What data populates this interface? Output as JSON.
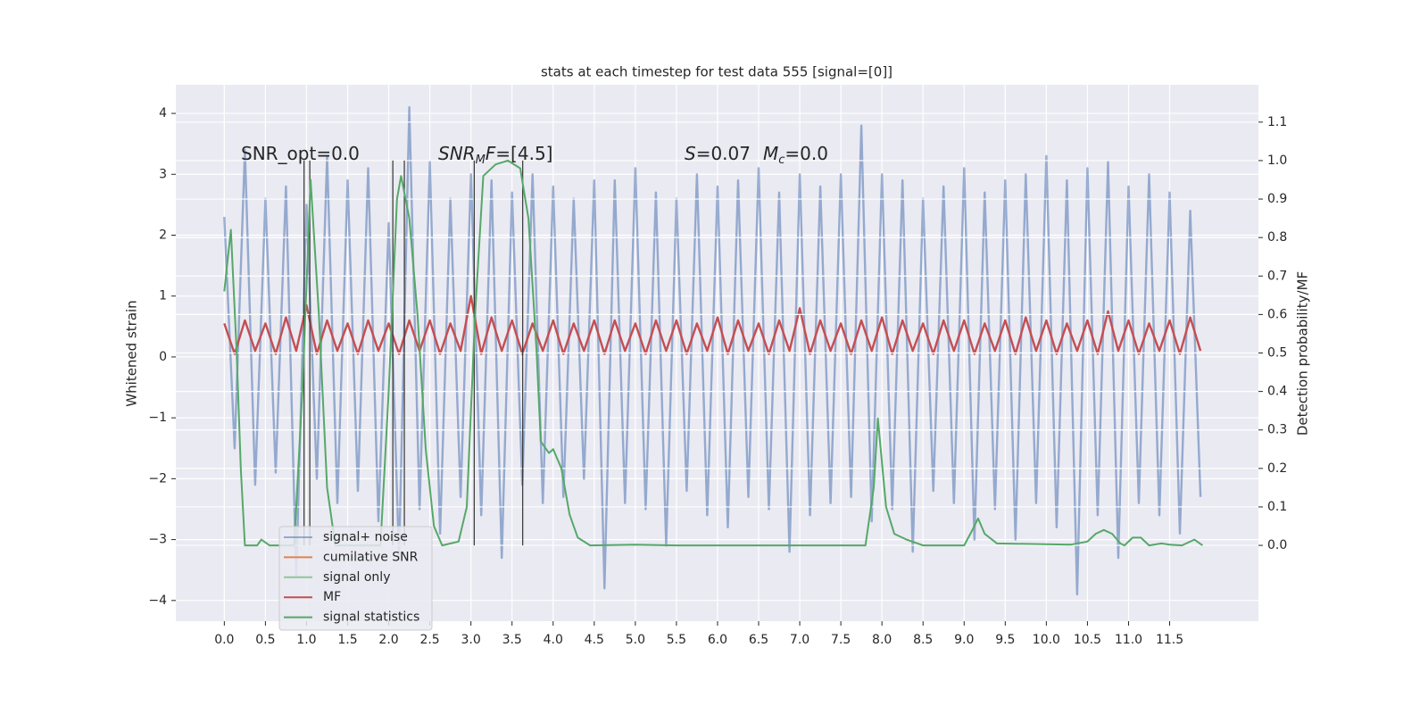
{
  "chart_data": {
    "type": "line",
    "title": "stats at each timestep for test data 555 [signal=[0]]",
    "y_label": "Whitened strain",
    "y2_label": "Detection probability/MF",
    "xlim": [
      -0.59,
      12.58
    ],
    "ylim": [
      -4.34,
      4.47
    ],
    "y2lim": [
      -0.197,
      1.197
    ],
    "grid": true,
    "background": "#eaeaf2",
    "xticks": [
      {
        "value": 0,
        "label": "0.0"
      },
      {
        "value": 0.5,
        "label": "0.5"
      },
      {
        "value": 1,
        "label": "1.0"
      },
      {
        "value": 1.5,
        "label": "1.5"
      },
      {
        "value": 2,
        "label": "2.0"
      },
      {
        "value": 2.5,
        "label": "2.5"
      },
      {
        "value": 3,
        "label": "3.0"
      },
      {
        "value": 3.5,
        "label": "3.5"
      },
      {
        "value": 4,
        "label": "4.0"
      },
      {
        "value": 4.5,
        "label": "4.5"
      },
      {
        "value": 5,
        "label": "5.0"
      },
      {
        "value": 5.5,
        "label": "5.5"
      },
      {
        "value": 6,
        "label": "6.0"
      },
      {
        "value": 6.5,
        "label": "6.5"
      },
      {
        "value": 7,
        "label": "7.0"
      },
      {
        "value": 7.5,
        "label": "7.5"
      },
      {
        "value": 8,
        "label": "8.0"
      },
      {
        "value": 8.5,
        "label": "8.5"
      },
      {
        "value": 9,
        "label": "9.0"
      },
      {
        "value": 9.5,
        "label": "9.5"
      },
      {
        "value": 10,
        "label": "10.0"
      },
      {
        "value": 10.5,
        "label": "10.5"
      },
      {
        "value": 11,
        "label": "11.0"
      },
      {
        "value": 11.5,
        "label": "11.5"
      }
    ],
    "yticks": [
      {
        "value": -4,
        "label": "−4"
      },
      {
        "value": -3,
        "label": "−3"
      },
      {
        "value": -2,
        "label": "−2"
      },
      {
        "value": -1,
        "label": "−1"
      },
      0,
      1,
      2,
      3,
      4
    ],
    "y2ticks": [
      {
        "value": 0,
        "label": "0.0"
      },
      {
        "value": 0.1,
        "label": "0.1"
      },
      {
        "value": 0.2,
        "label": "0.2"
      },
      {
        "value": 0.3,
        "label": "0.3"
      },
      {
        "value": 0.4,
        "label": "0.4"
      },
      {
        "value": 0.5,
        "label": "0.5"
      },
      {
        "value": 0.6,
        "label": "0.6"
      },
      {
        "value": 0.7,
        "label": "0.7"
      },
      {
        "value": 0.8,
        "label": "0.8"
      },
      {
        "value": 0.9,
        "label": "0.9"
      },
      {
        "value": 1,
        "label": "1.0"
      },
      {
        "value": 1.1,
        "label": "1.1"
      }
    ],
    "x": [
      0,
      0.125,
      0.25,
      0.375,
      0.5,
      0.625,
      0.75,
      0.875,
      1,
      1.125,
      1.25,
      1.375,
      1.5,
      1.625,
      1.75,
      1.875,
      2,
      2.125,
      2.25,
      2.375,
      2.5,
      2.625,
      2.75,
      2.875,
      3,
      3.125,
      3.25,
      3.375,
      3.5,
      3.625,
      3.75,
      3.875,
      4,
      4.125,
      4.25,
      4.375,
      4.5,
      4.625,
      4.75,
      4.875,
      5,
      5.125,
      5.25,
      5.375,
      5.5,
      5.625,
      5.75,
      5.875,
      6,
      6.125,
      6.25,
      6.375,
      6.5,
      6.625,
      6.75,
      6.875,
      7,
      7.125,
      7.25,
      7.375,
      7.5,
      7.625,
      7.75,
      7.875,
      8,
      8.125,
      8.25,
      8.375,
      8.5,
      8.625,
      8.75,
      8.875,
      9,
      9.125,
      9.25,
      9.375,
      9.5,
      9.625,
      9.75,
      9.875,
      10,
      10.125,
      10.25,
      10.375,
      10.5,
      10.625,
      10.75,
      10.875,
      11,
      11.125,
      11.25,
      11.375,
      11.5,
      11.625,
      11.75,
      11.875
    ],
    "series": [
      {
        "name": "signal+ noise",
        "color": "#4c72b0",
        "values": [
          2.3,
          -1.5,
          3.4,
          -2.1,
          2.6,
          -1.9,
          2.8,
          -3.6,
          2.5,
          -2.0,
          3.3,
          -2.4,
          2.9,
          -2.2,
          3.1,
          -2.7,
          2.2,
          -3.3,
          4.1,
          -2.5,
          3.2,
          -2.9,
          2.6,
          -2.3,
          3.0,
          -2.6,
          2.9,
          -3.3,
          2.7,
          -2.1,
          3.0,
          -2.4,
          2.8,
          -2.3,
          2.6,
          -2.0,
          2.9,
          -3.8,
          2.9,
          -2.4,
          3.1,
          -2.5,
          2.7,
          -3.1,
          2.6,
          -2.2,
          3.0,
          -2.6,
          2.8,
          -2.8,
          2.9,
          -2.3,
          3.1,
          -2.5,
          2.7,
          -3.2,
          3.0,
          -2.6,
          2.8,
          -2.4,
          3.0,
          -2.3,
          3.8,
          -2.7,
          3.0,
          -2.5,
          2.9,
          -3.2,
          2.6,
          -2.2,
          2.8,
          -2.4,
          3.1,
          -3.0,
          2.7,
          -2.5,
          2.9,
          -3.0,
          3.0,
          -2.4,
          3.3,
          -2.8,
          2.9,
          -3.9,
          3.1,
          -2.6,
          3.2,
          -3.3,
          2.8,
          -2.4,
          3.0,
          -2.6,
          2.7,
          -2.9,
          2.4,
          -2.3
        ]
      },
      {
        "name": "cumilative SNR",
        "color": "#dd8452"
      },
      {
        "name": "signal only",
        "color": "#8fc59c"
      },
      {
        "name": "MF",
        "color": "#c44e52",
        "values": [
          0.55,
          0.05,
          0.6,
          0.1,
          0.55,
          0.05,
          0.65,
          0.1,
          0.85,
          0.05,
          0.6,
          0.1,
          0.55,
          0.05,
          0.6,
          0.1,
          0.55,
          0.05,
          0.6,
          0.1,
          0.6,
          0.05,
          0.55,
          0.1,
          1.0,
          0.05,
          0.65,
          0.1,
          0.6,
          0.05,
          0.55,
          0.1,
          0.6,
          0.05,
          0.55,
          0.1,
          0.6,
          0.05,
          0.6,
          0.1,
          0.55,
          0.05,
          0.6,
          0.1,
          0.6,
          0.05,
          0.55,
          0.1,
          0.65,
          0.05,
          0.6,
          0.1,
          0.55,
          0.05,
          0.6,
          0.1,
          0.8,
          0.05,
          0.6,
          0.1,
          0.55,
          0.05,
          0.6,
          0.1,
          0.65,
          0.05,
          0.6,
          0.1,
          0.55,
          0.05,
          0.6,
          0.1,
          0.6,
          0.05,
          0.55,
          0.1,
          0.6,
          0.05,
          0.65,
          0.1,
          0.6,
          0.05,
          0.55,
          0.1,
          0.6,
          0.05,
          0.75,
          0.1,
          0.6,
          0.05,
          0.55,
          0.1,
          0.6,
          0.05,
          0.65,
          0.1
        ]
      },
      {
        "name": "signal statistics",
        "color": "#55a868",
        "axis": "y2",
        "x": [
          0,
          0.08,
          0.15,
          0.2,
          0.25,
          0.4,
          0.45,
          0.55,
          0.85,
          0.95,
          1.05,
          1.15,
          1.25,
          1.35,
          1.9,
          2.0,
          2.1,
          2.15,
          2.25,
          2.35,
          2.45,
          2.55,
          2.65,
          2.85,
          2.95,
          3.05,
          3.15,
          3.3,
          3.45,
          3.6,
          3.7,
          3.8,
          3.85,
          3.95,
          4.0,
          4.1,
          4.2,
          4.3,
          4.45,
          5.0,
          5.5,
          7.8,
          7.9,
          7.95,
          8.05,
          8.15,
          8.3,
          8.5,
          9.0,
          9.1,
          9.17,
          9.25,
          9.4,
          10.3,
          10.5,
          10.6,
          10.7,
          10.8,
          10.9,
          10.95,
          11.05,
          11.15,
          11.25,
          11.4,
          11.5,
          11.65,
          11.8,
          11.9
        ],
        "values": [
          0.66,
          0.82,
          0.5,
          0.2,
          0.0,
          0.0,
          0.015,
          0.0,
          0.0,
          0.4,
          0.95,
          0.6,
          0.15,
          0.0,
          0.0,
          0.4,
          0.9,
          0.96,
          0.85,
          0.6,
          0.25,
          0.05,
          0.0,
          0.01,
          0.1,
          0.6,
          0.96,
          0.99,
          1.0,
          0.98,
          0.85,
          0.5,
          0.27,
          0.24,
          0.25,
          0.2,
          0.08,
          0.02,
          0.0,
          0.002,
          0.0,
          0.0,
          0.15,
          0.33,
          0.1,
          0.03,
          0.015,
          0.0,
          0.0,
          0.04,
          0.07,
          0.03,
          0.005,
          0.002,
          0.01,
          0.03,
          0.04,
          0.03,
          0.005,
          0.0,
          0.02,
          0.02,
          0.0,
          0.005,
          0.002,
          0.0,
          0.015,
          0.0
        ]
      }
    ],
    "vlines": {
      "x": [
        0.97,
        1.04,
        2.05,
        2.19,
        3.04,
        3.63
      ],
      "ylim": [
        0,
        1
      ],
      "axis": "y2",
      "color": "#333333"
    },
    "annotations": [
      [
        {
          "text": "SNR_opt=0.0"
        }
      ],
      [
        {
          "text": "SNR",
          "italic": true
        },
        {
          "text": "M",
          "italic": true,
          "sub": true
        },
        {
          "text": "F",
          "italic": true
        },
        {
          "text": "=[4.5]"
        }
      ],
      [
        {
          "text": "S",
          "italic": true
        },
        {
          "text": "=0.07"
        },
        {
          "text": "M",
          "italic": true
        },
        {
          "text": "c",
          "italic": true,
          "sub": true
        },
        {
          "text": "=0.0"
        }
      ]
    ]
  }
}
